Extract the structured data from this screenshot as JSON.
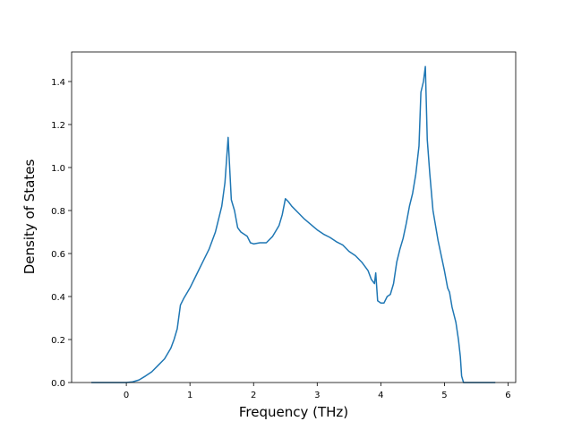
{
  "chart_data": {
    "type": "line",
    "xlabel": "Frequency (THz)",
    "ylabel": "Density of States",
    "color": "#1f77b4",
    "x": [
      -0.55,
      0,
      0.1,
      0.2,
      0.3,
      0.4,
      0.5,
      0.6,
      0.7,
      0.75,
      0.8,
      0.85,
      0.9,
      1.0,
      1.1,
      1.2,
      1.3,
      1.4,
      1.5,
      1.55,
      1.6,
      1.65,
      1.7,
      1.75,
      1.8,
      1.9,
      1.95,
      2.0,
      2.1,
      2.2,
      2.3,
      2.4,
      2.45,
      2.5,
      2.55,
      2.6,
      2.7,
      2.8,
      2.9,
      3.0,
      3.1,
      3.2,
      3.3,
      3.4,
      3.5,
      3.6,
      3.7,
      3.8,
      3.85,
      3.9,
      3.92,
      3.95,
      4.0,
      4.05,
      4.1,
      4.15,
      4.2,
      4.25,
      4.3,
      4.35,
      4.4,
      4.45,
      4.5,
      4.55,
      4.6,
      4.63,
      4.67,
      4.7,
      4.73,
      4.77,
      4.82,
      4.9,
      5.0,
      5.05,
      5.08,
      5.12,
      5.18,
      5.22,
      5.25,
      5.27,
      5.3,
      5.8
    ],
    "values": [
      0,
      0,
      0.003,
      0.012,
      0.03,
      0.05,
      0.08,
      0.11,
      0.16,
      0.2,
      0.25,
      0.36,
      0.39,
      0.44,
      0.5,
      0.56,
      0.62,
      0.7,
      0.82,
      0.93,
      1.14,
      0.85,
      0.8,
      0.72,
      0.7,
      0.68,
      0.65,
      0.645,
      0.65,
      0.65,
      0.68,
      0.73,
      0.78,
      0.855,
      0.84,
      0.82,
      0.79,
      0.76,
      0.735,
      0.71,
      0.69,
      0.675,
      0.655,
      0.64,
      0.61,
      0.59,
      0.56,
      0.52,
      0.48,
      0.46,
      0.51,
      0.38,
      0.37,
      0.37,
      0.4,
      0.41,
      0.46,
      0.56,
      0.62,
      0.67,
      0.74,
      0.82,
      0.88,
      0.97,
      1.1,
      1.35,
      1.4,
      1.47,
      1.13,
      0.97,
      0.8,
      0.66,
      0.52,
      0.44,
      0.42,
      0.35,
      0.28,
      0.2,
      0.12,
      0.03,
      0,
      0
    ],
    "xlim": [
      -0.86,
      6.12
    ],
    "xticks": [
      0,
      1,
      2,
      3,
      4,
      5,
      6
    ],
    "ylim": [
      0,
      1.5375
    ],
    "yticks": [
      {
        "value": 0,
        "label": "0.0"
      },
      0.2,
      0.4,
      0.6,
      0.8,
      {
        "value": 1,
        "label": "1.0"
      },
      1.2,
      1.4
    ],
    "grid": false
  }
}
